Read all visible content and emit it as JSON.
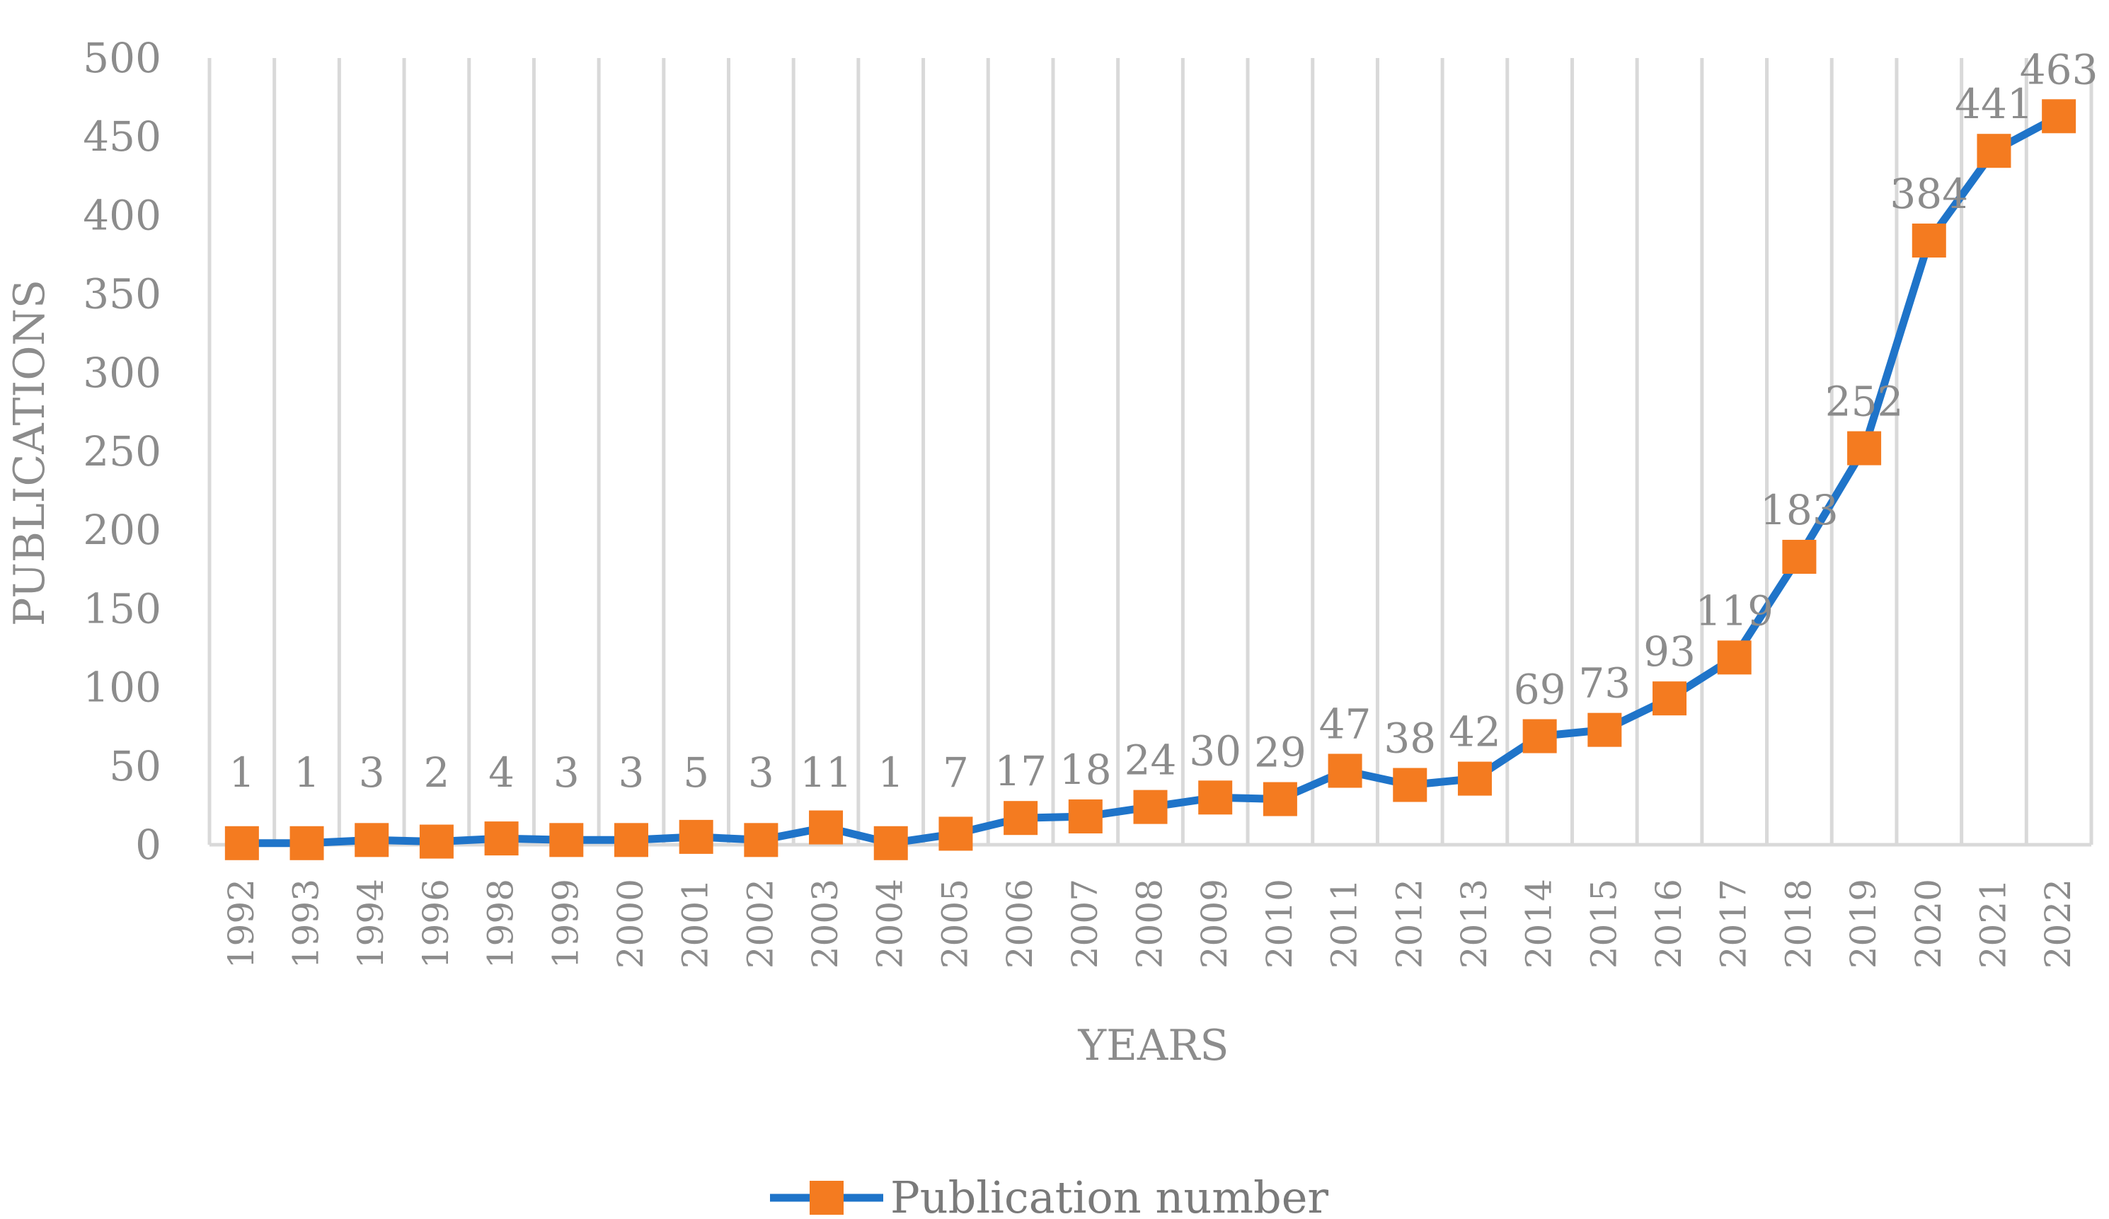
{
  "chart_data": {
    "type": "line",
    "title": "",
    "xlabel": "YEARS",
    "ylabel": "PUBLICATIONS",
    "categories": [
      "1992",
      "1993",
      "1994",
      "1996",
      "1998",
      "1999",
      "2000",
      "2001",
      "2002",
      "2003",
      "2004",
      "2005",
      "2006",
      "2007",
      "2008",
      "2009",
      "2010",
      "2011",
      "2012",
      "2013",
      "2014",
      "2015",
      "2016",
      "2017",
      "2018",
      "2019",
      "2020",
      "2021",
      "2022"
    ],
    "series": [
      {
        "name": "Publication number",
        "values": [
          1,
          1,
          3,
          2,
          4,
          3,
          3,
          5,
          3,
          11,
          1,
          7,
          17,
          18,
          24,
          30,
          29,
          47,
          38,
          42,
          69,
          73,
          93,
          119,
          183,
          252,
          384,
          441,
          463
        ],
        "line_color": "#1f74c9",
        "marker_color": "#f47b20"
      }
    ],
    "ylim": [
      0,
      500
    ],
    "yticks": [
      0,
      50,
      100,
      150,
      200,
      250,
      300,
      350,
      400,
      450,
      500
    ],
    "grid": "vertical",
    "legend_position": "bottom"
  }
}
